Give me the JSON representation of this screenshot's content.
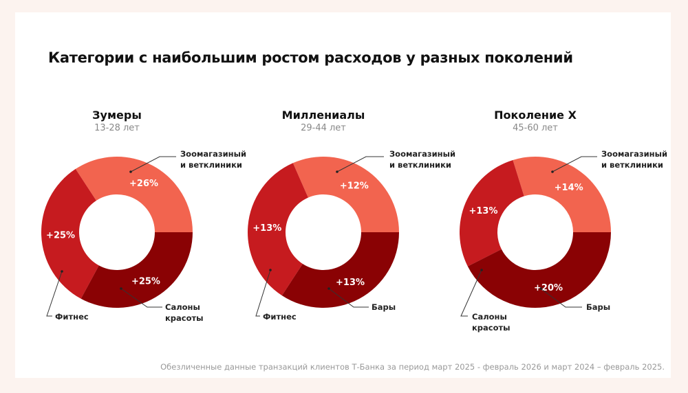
{
  "title": "Категории с наибольшим ростом расходов у разных поколений",
  "footnote": "Обезличенные данные транзакций клиентов Т-Банка за период март 2025 - февраль 2026 и март 2024 – февраль 2025.",
  "colors": {
    "light": "#f2644f",
    "mid": "#c61b1f",
    "dark": "#8a0204"
  },
  "chart_data": [
    {
      "type": "pie",
      "donut": true,
      "title": "Зумеры",
      "subtitle": "13-28 лет",
      "categories": [
        "Зоомагазиный\nи ветклиники",
        "Фитнес",
        "Салоны\nкрасоты"
      ],
      "values": [
        26,
        25,
        25
      ],
      "labels": [
        "+26%",
        "+25%",
        "+25%"
      ]
    },
    {
      "type": "pie",
      "donut": true,
      "title": "Миллениалы",
      "subtitle": "29-44 лет",
      "categories": [
        "Зоомагазиный\nи ветклиники",
        "Фитнес",
        "Бары"
      ],
      "values": [
        12,
        13,
        13
      ],
      "labels": [
        "+12%",
        "+13%",
        "+13%"
      ]
    },
    {
      "type": "pie",
      "donut": true,
      "title": "Поколение X",
      "subtitle": "45-60 лет",
      "categories": [
        "Зоомагазиный\nи ветклиники",
        "Салоны\nкрасоты",
        "Бары"
      ],
      "values": [
        14,
        13,
        20
      ],
      "labels": [
        "+14%",
        "+13%",
        "+20%"
      ]
    }
  ]
}
